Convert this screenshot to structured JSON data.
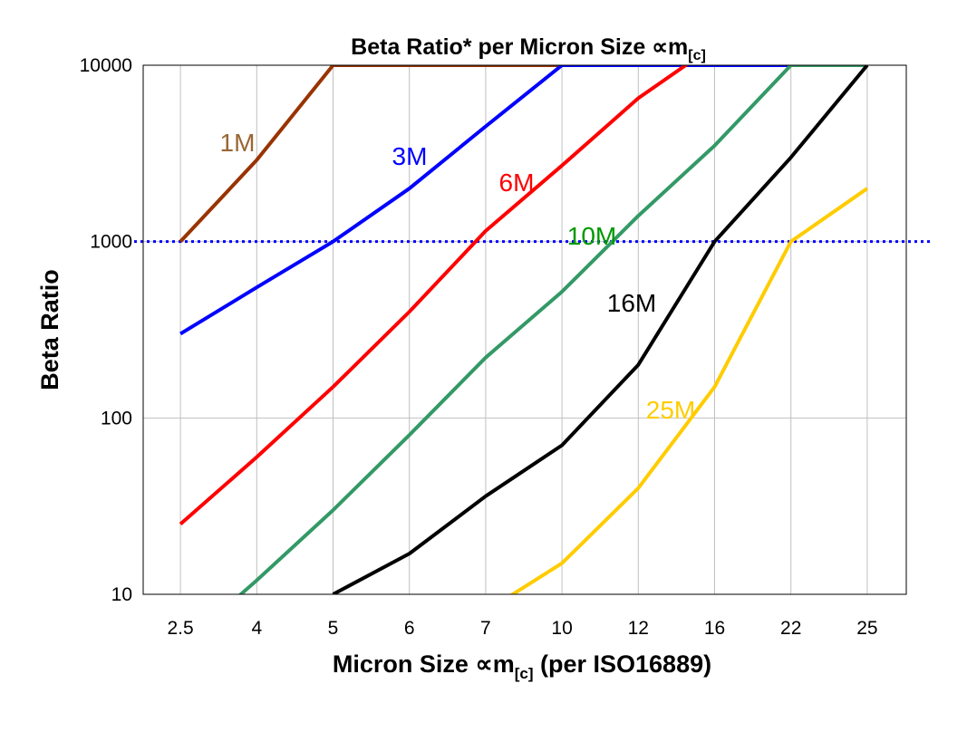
{
  "chart_data": {
    "type": "line",
    "title": "Beta Ratio* per Micron Size ∝m",
    "title_sub": "[c]",
    "xlabel": "Micron Size ∝m",
    "xlabel_sub": "[c]",
    "xlabel_suffix": " (per ISO16889)",
    "ylabel": "Beta Ratio",
    "y_scale": "log",
    "ylim": [
      10,
      10000
    ],
    "y_ticks": [
      "10",
      "100",
      "1000",
      "10000"
    ],
    "categories": [
      "2.5",
      "4",
      "5",
      "6",
      "7",
      "10",
      "12",
      "16",
      "22",
      "25"
    ],
    "grid": true,
    "reference_line": {
      "y": 1000,
      "style": "dotted",
      "color": "#0000ff"
    },
    "series": [
      {
        "name": "1M",
        "color": "#993300",
        "label_color": "#996633",
        "values": [
          1000,
          2900,
          10000,
          10000,
          10000,
          10000,
          10000,
          10000,
          10000,
          10000
        ]
      },
      {
        "name": "3M",
        "color": "#0000ff",
        "label_color": "#0000ff",
        "values": [
          300,
          550,
          1000,
          2000,
          4500,
          10000,
          10000,
          10000,
          10000,
          10000
        ]
      },
      {
        "name": "6M",
        "color": "#ff0000",
        "label_color": "#ff0000",
        "values": [
          25,
          60,
          150,
          400,
          1150,
          2700,
          6500,
          13000,
          13000,
          13000
        ]
      },
      {
        "name": "10M",
        "color": "#339966",
        "label_color": "#009900",
        "values": [
          5,
          12,
          30,
          80,
          220,
          520,
          1400,
          3500,
          10000,
          10000
        ]
      },
      {
        "name": "16M",
        "color": "#000000",
        "label_color": "#000000",
        "values": [
          null,
          null,
          10,
          17,
          36,
          70,
          200,
          1000,
          3000,
          10000
        ]
      },
      {
        "name": "25M",
        "color": "#ffcc00",
        "label_color": "#ffcc00",
        "values": [
          null,
          null,
          null,
          null,
          8,
          15,
          40,
          150,
          1000,
          2000
        ]
      }
    ]
  }
}
